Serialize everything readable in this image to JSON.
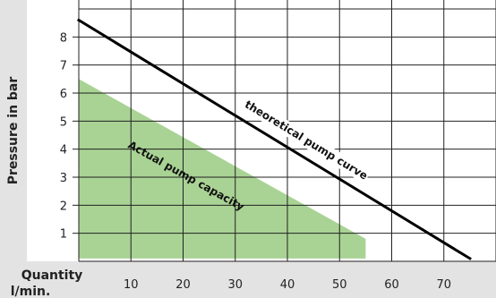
{
  "chart_data": {
    "type": "line",
    "title": "",
    "ylabel": "Pressure in bar",
    "xlabel_line1": "Quantity",
    "xlabel_line2": "l/min.",
    "xlim": [
      0,
      80
    ],
    "ylim": [
      0,
      9
    ],
    "x_ticks": [
      10,
      20,
      30,
      40,
      50,
      60,
      70
    ],
    "y_ticks": [
      1,
      2,
      3,
      4,
      5,
      6,
      7,
      8
    ],
    "grid": true,
    "series": [
      {
        "name": "theoretical pump curve",
        "style": "line",
        "color": "#000000",
        "points": [
          [
            0,
            8.6
          ],
          [
            75,
            0.1
          ]
        ]
      },
      {
        "name": "Actual pump capacity",
        "style": "area",
        "color": "#a9d394",
        "points": [
          [
            0,
            6.5
          ],
          [
            55,
            0.8
          ],
          [
            55,
            0.1
          ],
          [
            0,
            0.1
          ]
        ]
      }
    ],
    "annotations": [
      {
        "text": "theoretical pump curve",
        "series": 0
      },
      {
        "text": "Actual pump capacity",
        "series": 1
      }
    ]
  }
}
